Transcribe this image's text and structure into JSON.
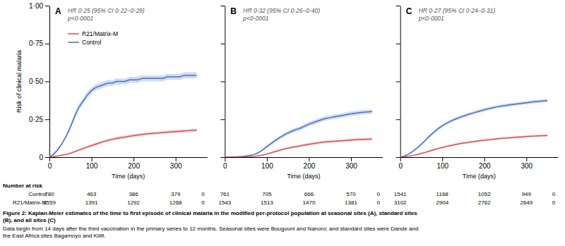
{
  "chart_data": [
    {
      "type": "line",
      "title": "A",
      "annotations": [
        "HR 0·25 (95% CI 0·22–0·29)",
        "p<0·0001"
      ],
      "xlabel": "Time (days)",
      "ylabel": "Risk of clinical malaria",
      "xlim": [
        0,
        375
      ],
      "ylim": [
        0,
        1.0
      ],
      "xticks": [
        0,
        100,
        200,
        300
      ],
      "yticks": [
        0,
        {
          "value": 0.25,
          "label": "0·25"
        },
        {
          "value": 0.5,
          "label": "0·50"
        },
        {
          "value": 0.75,
          "label": "0·75"
        },
        {
          "value": 1.0,
          "label": "1·00"
        }
      ],
      "legend": "upper left",
      "x": [
        0,
        10,
        20,
        30,
        40,
        50,
        60,
        70,
        80,
        90,
        100,
        110,
        120,
        130,
        140,
        150,
        160,
        170,
        180,
        190,
        200,
        210,
        220,
        230,
        240,
        250,
        260,
        270,
        280,
        290,
        300,
        310,
        320,
        330,
        340,
        350
      ],
      "series": [
        {
          "name": "Control",
          "color": "#4472C4",
          "values": [
            0,
            0.02,
            0.05,
            0.09,
            0.14,
            0.2,
            0.27,
            0.33,
            0.37,
            0.41,
            0.44,
            0.46,
            0.47,
            0.48,
            0.49,
            0.49,
            0.5,
            0.5,
            0.5,
            0.51,
            0.51,
            0.51,
            0.52,
            0.52,
            0.52,
            0.52,
            0.52,
            0.52,
            0.53,
            0.53,
            0.53,
            0.53,
            0.54,
            0.54,
            0.54,
            0.54
          ],
          "lo": [
            0,
            0.01,
            0.04,
            0.08,
            0.13,
            0.18,
            0.25,
            0.31,
            0.35,
            0.39,
            0.42,
            0.44,
            0.45,
            0.46,
            0.47,
            0.47,
            0.48,
            0.48,
            0.48,
            0.49,
            0.49,
            0.49,
            0.5,
            0.5,
            0.5,
            0.5,
            0.5,
            0.5,
            0.51,
            0.51,
            0.51,
            0.51,
            0.52,
            0.52,
            0.52,
            0.52
          ],
          "hi": [
            0,
            0.03,
            0.06,
            0.1,
            0.15,
            0.22,
            0.29,
            0.35,
            0.39,
            0.43,
            0.46,
            0.48,
            0.49,
            0.5,
            0.51,
            0.51,
            0.52,
            0.52,
            0.52,
            0.53,
            0.53,
            0.53,
            0.54,
            0.54,
            0.54,
            0.54,
            0.54,
            0.54,
            0.55,
            0.55,
            0.55,
            0.55,
            0.56,
            0.56,
            0.56,
            0.56
          ]
        },
        {
          "name": "R21/Matrix-M",
          "color": "#E05050",
          "values": [
            0,
            0.004,
            0.008,
            0.013,
            0.018,
            0.026,
            0.036,
            0.047,
            0.057,
            0.067,
            0.077,
            0.086,
            0.095,
            0.104,
            0.112,
            0.118,
            0.124,
            0.129,
            0.133,
            0.138,
            0.142,
            0.146,
            0.15,
            0.153,
            0.156,
            0.158,
            0.16,
            0.163,
            0.165,
            0.167,
            0.169,
            0.171,
            0.173,
            0.175,
            0.177,
            0.179
          ],
          "lo": [
            0,
            0.002,
            0.005,
            0.009,
            0.013,
            0.02,
            0.029,
            0.039,
            0.049,
            0.059,
            0.068,
            0.077,
            0.086,
            0.094,
            0.102,
            0.108,
            0.114,
            0.119,
            0.123,
            0.128,
            0.132,
            0.136,
            0.14,
            0.143,
            0.146,
            0.148,
            0.15,
            0.153,
            0.155,
            0.157,
            0.159,
            0.161,
            0.163,
            0.165,
            0.167,
            0.169
          ],
          "hi": [
            0,
            0.006,
            0.011,
            0.017,
            0.023,
            0.032,
            0.043,
            0.055,
            0.065,
            0.075,
            0.086,
            0.095,
            0.104,
            0.114,
            0.122,
            0.128,
            0.134,
            0.139,
            0.143,
            0.148,
            0.152,
            0.156,
            0.16,
            0.163,
            0.166,
            0.168,
            0.17,
            0.173,
            0.175,
            0.177,
            0.179,
            0.181,
            0.183,
            0.185,
            0.187,
            0.189
          ]
        }
      ],
      "at_risk": {
        "x": [
          0,
          100,
          200,
          300,
          365
        ],
        "rows": [
          [
            780,
            463,
            386,
            379,
            0
          ],
          [
            1559,
            1391,
            1292,
            1268,
            0
          ]
        ]
      }
    },
    {
      "type": "line",
      "title": "B",
      "annotations": [
        "HR 0·32 (95% CI 0·26–0·40)",
        "p<0·0001"
      ],
      "xlabel": "Time (days)",
      "xlim": [
        0,
        375
      ],
      "ylim": [
        0,
        1.0
      ],
      "xticks": [
        0,
        100,
        200,
        300
      ],
      "yticks": [
        0,
        0.25,
        0.5,
        0.75,
        1.0
      ],
      "tick_labels": "x",
      "x": [
        0,
        10,
        20,
        30,
        40,
        50,
        60,
        70,
        80,
        90,
        100,
        110,
        120,
        130,
        140,
        150,
        160,
        170,
        180,
        190,
        200,
        210,
        220,
        230,
        240,
        250,
        260,
        270,
        280,
        290,
        300,
        310,
        320,
        330,
        340,
        350
      ],
      "series": [
        {
          "name": "Control",
          "color": "#4472C4",
          "values": [
            0,
            0.001,
            0.002,
            0.003,
            0.005,
            0.008,
            0.012,
            0.018,
            0.03,
            0.048,
            0.07,
            0.09,
            0.11,
            0.128,
            0.145,
            0.16,
            0.172,
            0.183,
            0.192,
            0.205,
            0.218,
            0.228,
            0.238,
            0.248,
            0.256,
            0.261,
            0.266,
            0.271,
            0.276,
            0.281,
            0.286,
            0.29,
            0.294,
            0.297,
            0.299,
            0.301
          ],
          "lo": [
            0,
            0.0005,
            0.001,
            0.002,
            0.004,
            0.006,
            0.009,
            0.014,
            0.025,
            0.041,
            0.061,
            0.08,
            0.099,
            0.116,
            0.132,
            0.147,
            0.158,
            0.169,
            0.178,
            0.191,
            0.204,
            0.213,
            0.223,
            0.233,
            0.241,
            0.246,
            0.251,
            0.256,
            0.261,
            0.266,
            0.271,
            0.275,
            0.279,
            0.282,
            0.284,
            0.286
          ],
          "hi": [
            0,
            0.002,
            0.003,
            0.004,
            0.006,
            0.01,
            0.015,
            0.022,
            0.035,
            0.055,
            0.079,
            0.1,
            0.121,
            0.14,
            0.158,
            0.173,
            0.186,
            0.197,
            0.206,
            0.219,
            0.232,
            0.243,
            0.253,
            0.263,
            0.271,
            0.276,
            0.281,
            0.286,
            0.291,
            0.296,
            0.301,
            0.305,
            0.309,
            0.312,
            0.314,
            0.316
          ]
        },
        {
          "name": "R21/Matrix-M",
          "color": "#E05050",
          "values": [
            0,
            0.0003,
            0.0007,
            0.001,
            0.002,
            0.003,
            0.004,
            0.006,
            0.009,
            0.014,
            0.021,
            0.029,
            0.037,
            0.045,
            0.053,
            0.059,
            0.065,
            0.07,
            0.075,
            0.08,
            0.085,
            0.09,
            0.094,
            0.098,
            0.101,
            0.103,
            0.105,
            0.107,
            0.109,
            0.111,
            0.113,
            0.115,
            0.117,
            0.118,
            0.119,
            0.12
          ],
          "lo": [
            0,
            0.0001,
            0.0004,
            0.0007,
            0.001,
            0.002,
            0.003,
            0.004,
            0.007,
            0.01,
            0.017,
            0.024,
            0.031,
            0.038,
            0.046,
            0.051,
            0.057,
            0.062,
            0.066,
            0.071,
            0.076,
            0.081,
            0.085,
            0.089,
            0.092,
            0.094,
            0.096,
            0.098,
            0.1,
            0.102,
            0.104,
            0.106,
            0.108,
            0.109,
            0.11,
            0.111
          ],
          "hi": [
            0,
            0.0005,
            0.001,
            0.0015,
            0.003,
            0.004,
            0.005,
            0.008,
            0.011,
            0.018,
            0.025,
            0.034,
            0.043,
            0.052,
            0.06,
            0.067,
            0.073,
            0.078,
            0.084,
            0.089,
            0.094,
            0.099,
            0.103,
            0.107,
            0.11,
            0.112,
            0.114,
            0.116,
            0.118,
            0.12,
            0.122,
            0.124,
            0.126,
            0.127,
            0.128,
            0.129
          ]
        }
      ],
      "at_risk": {
        "x": [
          0,
          100,
          200,
          300,
          365
        ],
        "rows": [
          [
            761,
            705,
            666,
            570,
            0
          ],
          [
            1543,
            1513,
            1470,
            1381,
            0
          ]
        ]
      }
    },
    {
      "type": "line",
      "title": "C",
      "annotations": [
        "HR 0·27 (95% CI 0·24–0·31)",
        "p<0·0001"
      ],
      "xlabel": "Time (days)",
      "xlim": [
        0,
        375
      ],
      "ylim": [
        0,
        1.0
      ],
      "xticks": [
        0,
        100,
        200,
        300
      ],
      "yticks": [
        0,
        0.25,
        0.5,
        0.75,
        1.0
      ],
      "tick_labels": "x",
      "x": [
        0,
        10,
        20,
        30,
        40,
        50,
        60,
        70,
        80,
        90,
        100,
        110,
        120,
        130,
        140,
        150,
        160,
        170,
        180,
        190,
        200,
        210,
        220,
        230,
        240,
        250,
        260,
        270,
        280,
        290,
        300,
        310,
        320,
        330,
        340,
        350
      ],
      "series": [
        {
          "name": "Control",
          "color": "#4472C4",
          "values": [
            0,
            0.008,
            0.02,
            0.038,
            0.06,
            0.085,
            0.112,
            0.14,
            0.165,
            0.188,
            0.208,
            0.224,
            0.238,
            0.25,
            0.261,
            0.271,
            0.28,
            0.289,
            0.297,
            0.305,
            0.313,
            0.32,
            0.326,
            0.332,
            0.337,
            0.341,
            0.345,
            0.349,
            0.352,
            0.356,
            0.359,
            0.363,
            0.366,
            0.369,
            0.371,
            0.373
          ],
          "lo": [
            0,
            0.006,
            0.016,
            0.032,
            0.053,
            0.077,
            0.103,
            0.13,
            0.155,
            0.177,
            0.197,
            0.213,
            0.227,
            0.239,
            0.25,
            0.26,
            0.269,
            0.278,
            0.286,
            0.294,
            0.302,
            0.309,
            0.315,
            0.321,
            0.326,
            0.33,
            0.334,
            0.338,
            0.341,
            0.345,
            0.348,
            0.352,
            0.355,
            0.358,
            0.36,
            0.362
          ],
          "hi": [
            0,
            0.01,
            0.024,
            0.044,
            0.067,
            0.093,
            0.121,
            0.15,
            0.175,
            0.199,
            0.219,
            0.235,
            0.249,
            0.261,
            0.272,
            0.282,
            0.291,
            0.3,
            0.308,
            0.316,
            0.324,
            0.331,
            0.337,
            0.343,
            0.348,
            0.352,
            0.356,
            0.36,
            0.363,
            0.367,
            0.37,
            0.374,
            0.377,
            0.38,
            0.382,
            0.384
          ]
        },
        {
          "name": "R21/Matrix-M",
          "color": "#E05050",
          "values": [
            0,
            0.002,
            0.006,
            0.011,
            0.017,
            0.024,
            0.032,
            0.041,
            0.049,
            0.057,
            0.064,
            0.071,
            0.077,
            0.083,
            0.088,
            0.093,
            0.097,
            0.101,
            0.105,
            0.109,
            0.112,
            0.115,
            0.118,
            0.121,
            0.124,
            0.126,
            0.128,
            0.13,
            0.132,
            0.134,
            0.136,
            0.138,
            0.139,
            0.141,
            0.142,
            0.143
          ],
          "lo": [
            0,
            0.001,
            0.004,
            0.008,
            0.013,
            0.019,
            0.027,
            0.035,
            0.043,
            0.051,
            0.058,
            0.064,
            0.07,
            0.076,
            0.081,
            0.086,
            0.09,
            0.094,
            0.098,
            0.102,
            0.105,
            0.108,
            0.111,
            0.114,
            0.117,
            0.119,
            0.121,
            0.123,
            0.125,
            0.127,
            0.129,
            0.131,
            0.132,
            0.134,
            0.135,
            0.136
          ],
          "hi": [
            0,
            0.003,
            0.008,
            0.014,
            0.021,
            0.029,
            0.037,
            0.047,
            0.055,
            0.063,
            0.07,
            0.078,
            0.084,
            0.09,
            0.095,
            0.1,
            0.104,
            0.108,
            0.112,
            0.116,
            0.119,
            0.122,
            0.125,
            0.128,
            0.131,
            0.133,
            0.135,
            0.137,
            0.139,
            0.141,
            0.143,
            0.145,
            0.146,
            0.148,
            0.149,
            0.15
          ]
        }
      ],
      "at_risk": {
        "x": [
          0,
          100,
          200,
          300,
          365
        ],
        "rows": [
          [
            1541,
            1168,
            1052,
            949,
            0
          ],
          [
            3102,
            2904,
            2762,
            2649,
            0
          ]
        ]
      }
    }
  ],
  "number_at_risk_label": "Number at risk",
  "at_risk_rows": [
    "Control",
    "R21/Matrix-M"
  ],
  "caption_bold": "Figure 2: Kaplan-Meier estimates of the time to first episode of clinical malaria in the modified per-protocol population at seasonal sites (A), standard sites\n(B), and all sites (C)",
  "caption": "Data begin from 14 days after the third vaccination in the primary series to 12 months. Seasonal sites were Bougouni and Nanoro; and standard sites were Dande and\nthe East Africa sites Bagamoyo and Kilifi."
}
